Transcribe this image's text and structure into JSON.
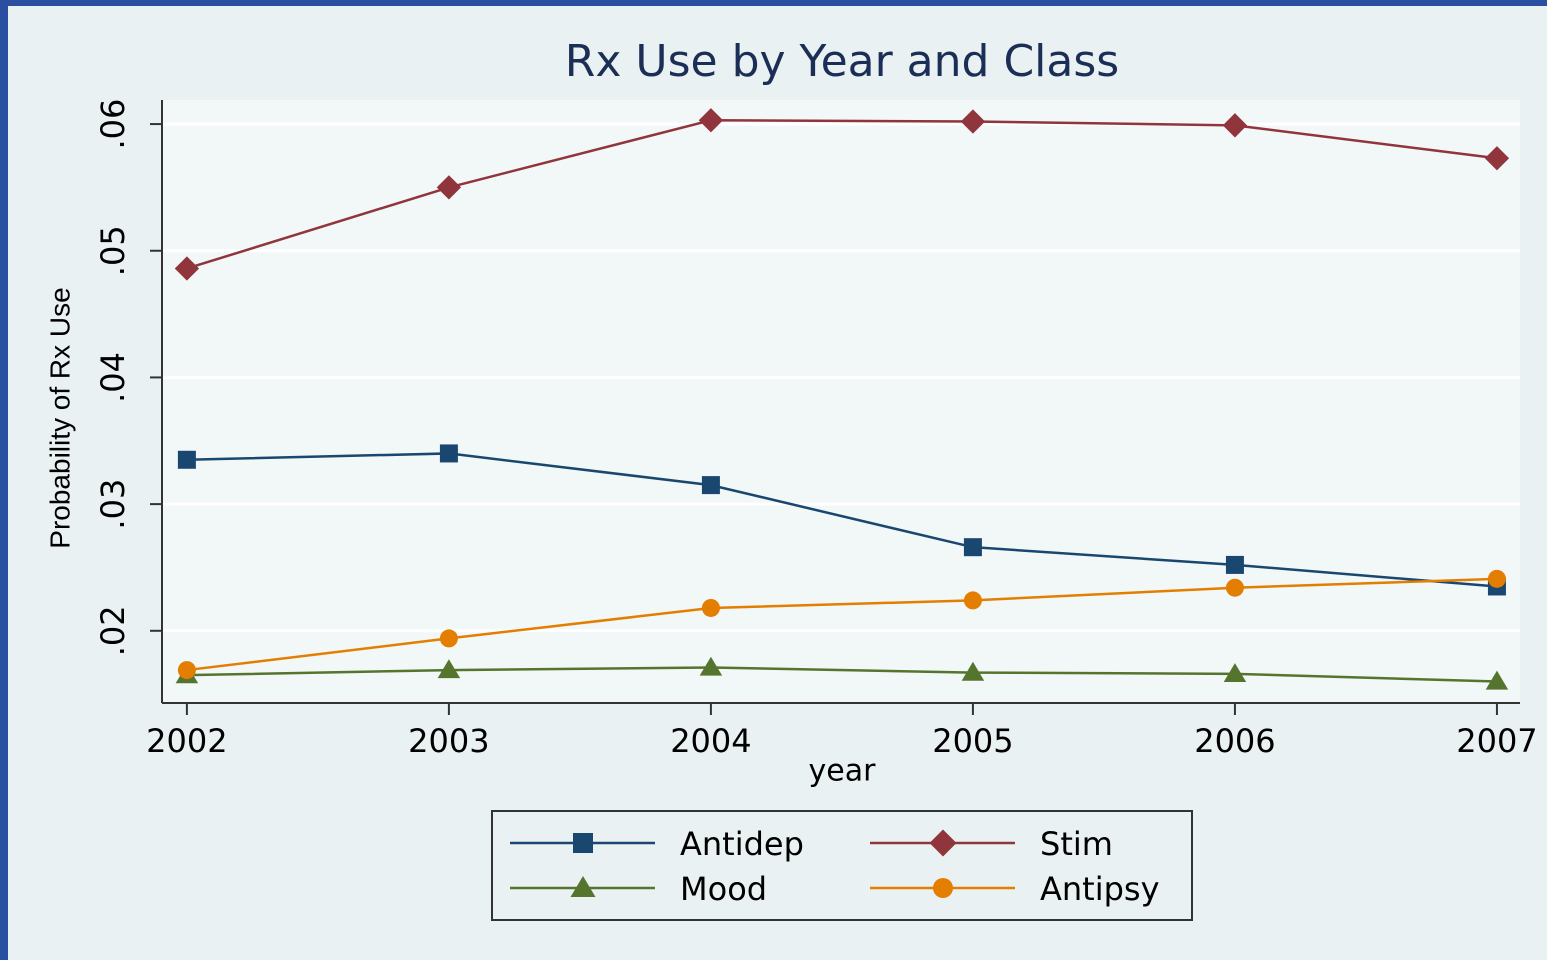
{
  "chart_data": {
    "type": "line",
    "title": "Rx Use by Year and Class",
    "x_label": "year",
    "y_label": "Probability of Rx Use",
    "x": [
      2002,
      2003,
      2004,
      2005,
      2006,
      2007
    ],
    "series": [
      {
        "name": "Antidep",
        "color": "#1a476f",
        "marker": "square",
        "values": [
          0.0335,
          0.034,
          0.0315,
          0.0266,
          0.0252,
          0.0235
        ]
      },
      {
        "name": "Stim",
        "color": "#90353b",
        "marker": "diamond",
        "values": [
          0.0486,
          0.055,
          0.0603,
          0.0602,
          0.0599,
          0.0573
        ]
      },
      {
        "name": "Mood",
        "color": "#55752f",
        "marker": "triangle",
        "values": [
          0.0165,
          0.0169,
          0.0171,
          0.0167,
          0.0166,
          0.016
        ]
      },
      {
        "name": "Antipsy",
        "color": "#e37e00",
        "marker": "circle",
        "values": [
          0.0169,
          0.0194,
          0.0218,
          0.0224,
          0.0234,
          0.0241
        ]
      }
    ],
    "xlim": [
      2001.905,
      2007.088
    ],
    "xticks": [
      2002,
      2003,
      2004,
      2005,
      2006,
      2007
    ],
    "ylim": [
      0.0143,
      0.0619
    ],
    "yticks": [
      {
        "value": 0.02,
        "label": ".02"
      },
      {
        "value": 0.03,
        "label": ".03"
      },
      {
        "value": 0.04,
        "label": ".04"
      },
      {
        "value": 0.05,
        "label": ".05"
      },
      {
        "value": 0.06,
        "label": ".06"
      }
    ],
    "grid": true,
    "legend": "bottom"
  }
}
